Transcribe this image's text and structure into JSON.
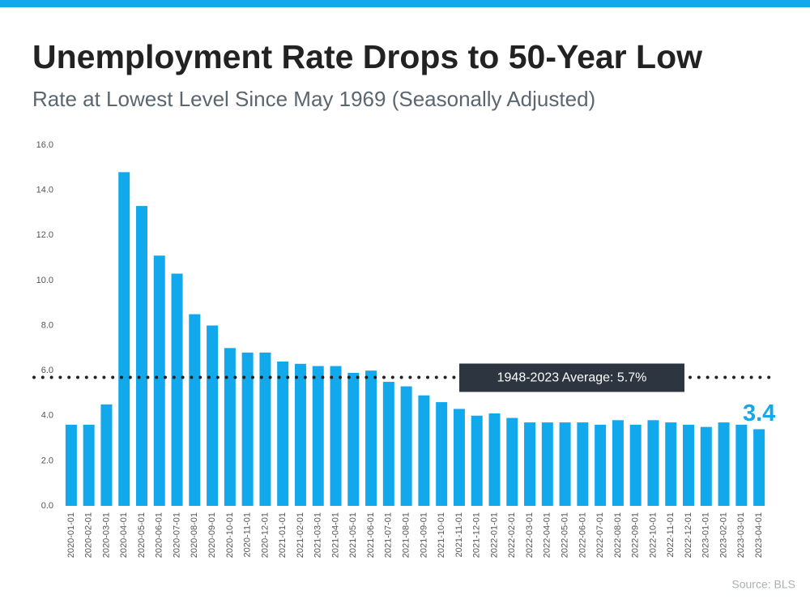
{
  "chart_data": {
    "type": "bar",
    "title": "Unemployment Rate Drops to 50-Year Low",
    "subtitle": "Rate at Lowest Level Since May 1969 (Seasonally Adjusted)",
    "categories": [
      "2020-01-01",
      "2020-02-01",
      "2020-03-01",
      "2020-04-01",
      "2020-05-01",
      "2020-06-01",
      "2020-07-01",
      "2020-08-01",
      "2020-09-01",
      "2020-10-01",
      "2020-11-01",
      "2020-12-01",
      "2021-01-01",
      "2021-02-01",
      "2021-03-01",
      "2021-04-01",
      "2021-05-01",
      "2021-06-01",
      "2021-07-01",
      "2021-08-01",
      "2021-09-01",
      "2021-10-01",
      "2021-11-01",
      "2021-12-01",
      "2022-01-01",
      "2022-02-01",
      "2022-03-01",
      "2022-04-01",
      "2022-05-01",
      "2022-06-01",
      "2022-07-01",
      "2022-08-01",
      "2022-09-01",
      "2022-10-01",
      "2022-11-01",
      "2022-12-01",
      "2023-01-01",
      "2023-02-01",
      "2023-03-01",
      "2023-04-01"
    ],
    "values": [
      3.6,
      3.6,
      4.5,
      14.8,
      13.3,
      11.1,
      10.3,
      8.5,
      8.0,
      7.0,
      6.8,
      6.8,
      6.4,
      6.3,
      6.2,
      6.2,
      5.9,
      6.0,
      5.5,
      5.3,
      4.9,
      4.6,
      4.3,
      4.0,
      4.1,
      3.9,
      3.7,
      3.7,
      3.7,
      3.7,
      3.6,
      3.8,
      3.6,
      3.8,
      3.7,
      3.6,
      3.5,
      3.7,
      3.6,
      3.4
    ],
    "color": "#12a9ec",
    "ylim": [
      0,
      16
    ],
    "yticks": [
      {
        "value": 0,
        "label": "0.0"
      },
      {
        "value": 2,
        "label": "2.0"
      },
      {
        "value": 4,
        "label": "4.0"
      },
      {
        "value": 6,
        "label": "6.0"
      },
      {
        "value": 8,
        "label": "8.0"
      },
      {
        "value": 10,
        "label": "10.0"
      },
      {
        "value": 12,
        "label": "12.0"
      },
      {
        "value": 14,
        "label": "14.0"
      },
      {
        "value": 16,
        "label": "16.0"
      }
    ],
    "reference_line": {
      "value": 5.7,
      "label": "1948-2023 Average: 5.7%"
    },
    "source": "Source: BLS"
  }
}
